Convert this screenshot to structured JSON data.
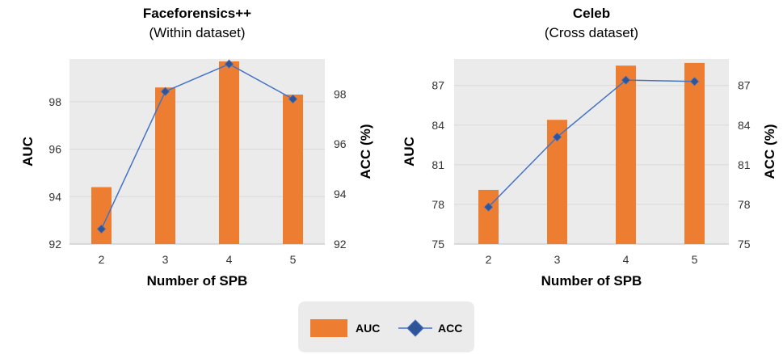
{
  "chart_data": [
    {
      "type": "bar+line",
      "title": "Faceforensics++",
      "subtitle": "(Within dataset)",
      "xlabel": "Number of SPB",
      "ylabel_left": "AUC",
      "ylabel_right": "ACC (%)",
      "categories": [
        "2",
        "3",
        "4",
        "5"
      ],
      "ylim": [
        92,
        99.8
      ],
      "yticks": [
        92,
        94,
        96,
        98
      ],
      "right_ylim": [
        92,
        99.4
      ],
      "right_yticks": [
        92,
        94,
        96,
        98
      ],
      "series": [
        {
          "name": "AUC",
          "kind": "bar",
          "axis": "left",
          "values": [
            94.4,
            98.6,
            99.7,
            98.3
          ]
        },
        {
          "name": "ACC",
          "kind": "line",
          "axis": "right",
          "values": [
            92.6,
            98.1,
            99.2,
            97.8
          ]
        }
      ]
    },
    {
      "type": "bar+line",
      "title": "Celeb",
      "subtitle": "(Cross dataset)",
      "xlabel": "Number of SPB",
      "ylabel_left": "AUC",
      "ylabel_right": "ACC (%)",
      "categories": [
        "2",
        "3",
        "4",
        "5"
      ],
      "ylim": [
        75,
        89
      ],
      "yticks": [
        75,
        78,
        81,
        84,
        87
      ],
      "right_ylim": [
        75,
        89
      ],
      "right_yticks": [
        75,
        78,
        81,
        84,
        87
      ],
      "series": [
        {
          "name": "AUC",
          "kind": "bar",
          "axis": "left",
          "values": [
            79.1,
            84.4,
            88.5,
            88.7
          ]
        },
        {
          "name": "ACC",
          "kind": "line",
          "axis": "right",
          "values": [
            77.8,
            83.1,
            87.4,
            87.3
          ]
        }
      ]
    }
  ],
  "legend": {
    "items": [
      {
        "label": "AUC",
        "kind": "bar"
      },
      {
        "label": "ACC",
        "kind": "line"
      }
    ]
  },
  "colors": {
    "bar": "#ED7D31",
    "line": "#4472C4",
    "marker": "#2F5597",
    "plot_bg": "#EBEBEB",
    "grid": "#D9D9D9",
    "legend_bg": "#EBEBEB"
  }
}
